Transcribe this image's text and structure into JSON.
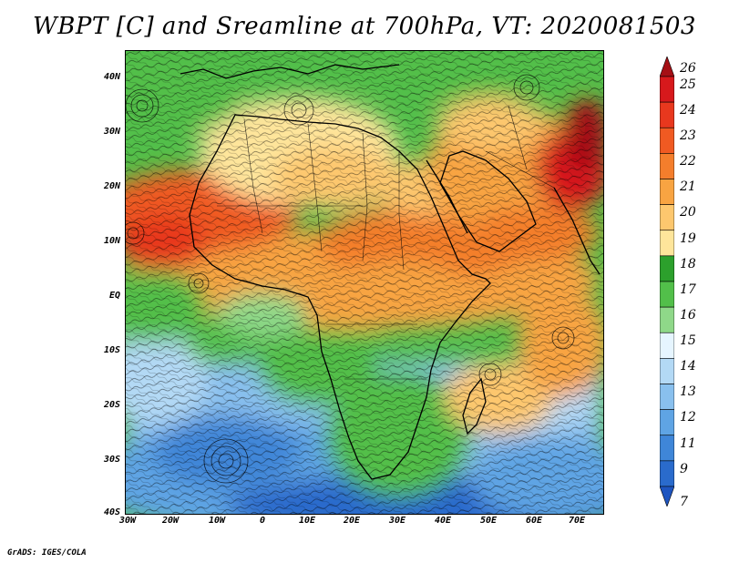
{
  "title": "WBPT [C] and Sreamline at 700hPa, VT: 2020081503",
  "credit": "GrADS: IGES/COLA",
  "map": {
    "y_axis_labels": [
      "40N",
      "30N",
      "20N",
      "10N",
      "EQ",
      "10S",
      "20S",
      "30S",
      "40S"
    ],
    "x_axis_labels": [
      "30W",
      "20W",
      "10W",
      "0",
      "10E",
      "20E",
      "30E",
      "40E",
      "50E",
      "60E",
      "70E"
    ],
    "lat_range": [
      -40,
      45
    ],
    "lon_range": [
      -30,
      75
    ]
  },
  "colorbar": {
    "labels": [
      "26",
      "25",
      "24",
      "23",
      "22",
      "21",
      "20",
      "19",
      "18",
      "17",
      "16",
      "15",
      "14",
      "13",
      "12",
      "11",
      "9",
      "7"
    ],
    "colors": [
      "#a50f15",
      "#d7191c",
      "#e8381e",
      "#f05a22",
      "#f47e2c",
      "#f8a442",
      "#fdc76e",
      "#fee59b",
      "#2ca02c",
      "#52bf4a",
      "#8fd889",
      "#e6f5ff",
      "#b3d9f5",
      "#89c0ee",
      "#5fa4e4",
      "#3f86d8",
      "#2a6bcc",
      "#1e55c0"
    ]
  }
}
